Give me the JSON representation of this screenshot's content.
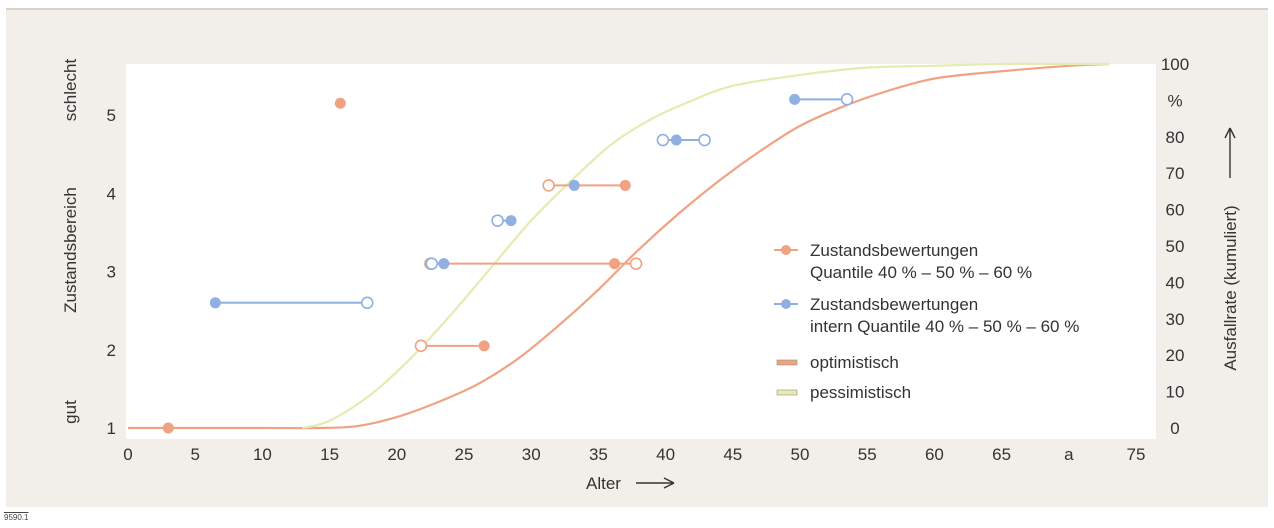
{
  "figure_id": "9590.1",
  "chart_data": {
    "type": "scatter",
    "x_axis": {
      "label": "Alter",
      "range": [
        0,
        75
      ],
      "ticks": [
        "0",
        "5",
        "10",
        "15",
        "20",
        "25",
        "30",
        "35",
        "40",
        "45",
        "50",
        "55",
        "60",
        "65",
        "a",
        "75"
      ],
      "tick_values": [
        0,
        5,
        10,
        15,
        20,
        25,
        30,
        35,
        40,
        45,
        50,
        55,
        60,
        65,
        70,
        75
      ]
    },
    "y_axis_left": {
      "label": "Zustandsbereich",
      "range": [
        1,
        5.5
      ],
      "ticks": [
        "1",
        "2",
        "3",
        "4",
        "5"
      ],
      "tick_values": [
        1,
        2,
        3,
        4,
        5
      ],
      "end_labels": {
        "low": "gut",
        "high": "schlecht"
      }
    },
    "y_axis_right": {
      "label": "Ausfallrate (kumuliert)",
      "range": [
        0,
        100
      ],
      "ticks": [
        "0",
        "10",
        "20",
        "30",
        "40",
        "50",
        "60",
        "70",
        "80",
        "%",
        "100"
      ],
      "tick_values": [
        0,
        10,
        20,
        30,
        40,
        50,
        60,
        70,
        80,
        90,
        100
      ]
    },
    "series": [
      {
        "name": "Zustandsbewertungen Quantile 40 % – 50 % – 60 %",
        "legend_lines": [
          "Zustandsbewertungen",
          "Quantile 40 % – 50 % – 60 %"
        ],
        "color": "#f0a283",
        "kind": "quantile-range",
        "points": [
          {
            "y": 1.0,
            "q40": 3,
            "q50": 3,
            "q60": 3
          },
          {
            "y": 2.05,
            "q40": 21.8,
            "q50": 26.5,
            "q60": 26.5
          },
          {
            "y": 3.1,
            "q40": 22.5,
            "q50": 36.2,
            "q60": 37.8
          },
          {
            "y": 4.1,
            "q40": 31.3,
            "q50": 37,
            "q60": 37
          },
          {
            "y": 5.15,
            "q40": 15.8,
            "q50": 15.8,
            "q60": 15.8
          }
        ]
      },
      {
        "name": "Zustandsbewertungen intern Quantile 40 % – 50 % – 60 %",
        "legend_lines": [
          "Zustandsbewertungen",
          "intern Quantile 40 % – 50 % – 60 %"
        ],
        "color": "#8fb0e0",
        "kind": "quantile-range",
        "points": [
          {
            "y": 2.6,
            "q40": 6.5,
            "q50": 6.5,
            "q60": 17.8
          },
          {
            "y": 3.1,
            "q40": 22.6,
            "q50": 23.5,
            "q60": 23.5
          },
          {
            "y": 3.65,
            "q40": 27.5,
            "q50": 28.5,
            "q60": 28.5
          },
          {
            "y": 4.1,
            "q40": 33.2,
            "q50": 33.2,
            "q60": 33.2
          },
          {
            "y": 4.68,
            "q40": 39.8,
            "q50": 40.8,
            "q60": 42.9
          },
          {
            "y": 5.2,
            "q40": 49.6,
            "q50": 49.6,
            "q60": 53.5
          }
        ]
      },
      {
        "name": "optimistisch",
        "color": "#f0a283",
        "kind": "cdf",
        "x": [
          0,
          5,
          10,
          14,
          17,
          20,
          23,
          26,
          29,
          32,
          35,
          38,
          41,
          44,
          47,
          50,
          53,
          56,
          60,
          65,
          70,
          73
        ],
        "y": [
          0,
          0,
          0,
          0,
          0.5,
          3,
          7,
          12,
          19,
          28,
          38,
          49,
          59,
          68,
          76,
          83,
          88,
          92,
          96,
          98,
          99.5,
          100
        ]
      },
      {
        "name": "pessimistisch",
        "color": "#e4ecb0",
        "kind": "cdf",
        "x": [
          13,
          15,
          18,
          21,
          24,
          27,
          30,
          33,
          36,
          39,
          42,
          45,
          50,
          55,
          60,
          65,
          70,
          73
        ],
        "y": [
          0,
          2,
          9,
          19,
          31,
          44,
          57,
          68,
          78,
          85,
          90,
          94,
          97,
          99,
          99.5,
          100,
          100,
          100
        ]
      }
    ],
    "legend": {
      "placement": "right",
      "entries": [
        "Zustandsbewertungen Quantile 40 % – 50 % – 60 %",
        "Zustandsbewertungen intern Quantile 40 % – 50 % – 60 %",
        "optimistisch",
        "pessimistisch"
      ]
    },
    "grid": false
  }
}
